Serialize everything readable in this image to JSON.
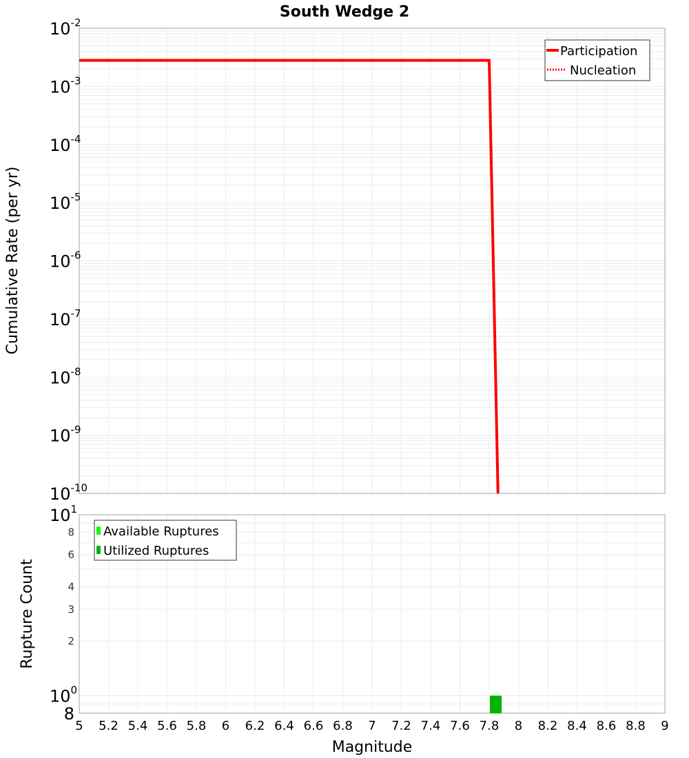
{
  "chart_data": [
    {
      "type": "line",
      "title": "South Wedge 2",
      "xlabel": "Magnitude",
      "ylabel": "Cumulative Rate (per yr)",
      "xlim": [
        5,
        9
      ],
      "ylim": [
        1e-10,
        0.01
      ],
      "yscale": "log",
      "grid": true,
      "legend_position": "upper right",
      "y_tick_labels": [
        "10^-2",
        "10^-3",
        "10^-4",
        "10^-5",
        "10^-6",
        "10^-7",
        "10^-8",
        "10^-9",
        "10^-10"
      ],
      "series": [
        {
          "name": "Participation",
          "style": "solid",
          "color": "#ff0000",
          "x": [
            5.0,
            7.8,
            7.86
          ],
          "y": [
            0.0028,
            0.0028,
            1e-10
          ]
        },
        {
          "name": "Nucleation",
          "style": "dotted",
          "color": "#ff0000",
          "x": [
            5.0,
            7.8,
            7.86
          ],
          "y": [
            0.0028,
            0.0028,
            1e-10
          ]
        }
      ]
    },
    {
      "type": "bar",
      "title": "",
      "xlabel": "Magnitude",
      "ylabel": "Rupture Count",
      "xlim": [
        5,
        9
      ],
      "ylim": [
        0.8,
        10
      ],
      "yscale": "log",
      "grid": true,
      "legend_position": "upper left",
      "x_tick_labels": [
        "5",
        "5.2",
        "5.4",
        "5.6",
        "5.8",
        "6",
        "6.2",
        "6.4",
        "6.6",
        "6.8",
        "7",
        "7.2",
        "7.4",
        "7.6",
        "7.8",
        "8",
        "8.2",
        "8.4",
        "8.6",
        "8.8",
        "9"
      ],
      "y_tick_labels": [
        "8",
        "10^0",
        "2",
        "3",
        "4",
        "6",
        "8",
        "10^1"
      ],
      "series": [
        {
          "name": "Available Ruptures",
          "color": "#00ff00",
          "x": [
            7.85
          ],
          "values": [
            1
          ]
        },
        {
          "name": "Utilized Ruptures",
          "color": "#00b400",
          "x": [
            7.85
          ],
          "values": [
            1
          ]
        }
      ]
    }
  ],
  "top": {
    "title": "South Wedge 2",
    "ylabel": "Cumulative Rate (per yr)",
    "legend": [
      "Participation",
      "Nucleation"
    ]
  },
  "bottom": {
    "ylabel": "Rupture Count",
    "xlabel": "Magnitude",
    "legend": [
      "Available Ruptures",
      "Utilized Ruptures"
    ]
  }
}
